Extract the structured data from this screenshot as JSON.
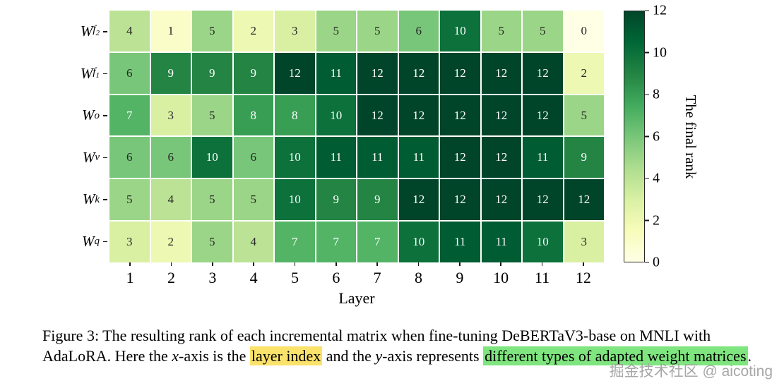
{
  "chart_data": {
    "type": "heatmap",
    "title": "",
    "xlabel": "Layer",
    "ylabel": "",
    "x_categories": [
      "1",
      "2",
      "3",
      "4",
      "5",
      "6",
      "7",
      "8",
      "9",
      "10",
      "11",
      "12"
    ],
    "y_categories": [
      "Wf2",
      "Wf1",
      "Wo",
      "Wv",
      "Wk",
      "Wq"
    ],
    "y_labels": [
      {
        "main": "W",
        "sub": "f2"
      },
      {
        "main": "W",
        "sub": "f1"
      },
      {
        "main": "W",
        "sub": "o"
      },
      {
        "main": "W",
        "sub": "v"
      },
      {
        "main": "W",
        "sub": "k"
      },
      {
        "main": "W",
        "sub": "q"
      }
    ],
    "values": [
      [
        4,
        1,
        5,
        2,
        3,
        5,
        5,
        6,
        10,
        5,
        5,
        0
      ],
      [
        6,
        9,
        9,
        9,
        12,
        11,
        12,
        12,
        12,
        12,
        12,
        2
      ],
      [
        7,
        3,
        5,
        8,
        8,
        10,
        12,
        12,
        12,
        12,
        12,
        5
      ],
      [
        6,
        6,
        10,
        6,
        10,
        11,
        11,
        11,
        12,
        12,
        11,
        9
      ],
      [
        5,
        4,
        5,
        5,
        10,
        9,
        9,
        12,
        12,
        12,
        12,
        12
      ],
      [
        3,
        2,
        5,
        4,
        7,
        7,
        7,
        10,
        11,
        11,
        10,
        3
      ]
    ],
    "vmin": 0,
    "vmax": 12,
    "grid": false,
    "colorbar": {
      "label": "The final rank",
      "ticks": [
        0,
        2,
        4,
        6,
        8,
        10,
        12
      ]
    },
    "colormap": "YlGn",
    "colormap_stops": [
      "#ffffe5",
      "#f7fcb9",
      "#d9f0a3",
      "#addd8e",
      "#78c679",
      "#41ab5d",
      "#238443",
      "#006837",
      "#004529"
    ]
  },
  "caption": {
    "highlight_colors": {
      "yellow": "#fbe26b",
      "green": "#7fe57f"
    },
    "segments": [
      {
        "text": "Figure 3: The resulting rank of each incremental matrix when fine-tuning DeBERTaV3-base on MNLI with AdaLoRA. Here the ",
        "style": "normal"
      },
      {
        "text": "x",
        "style": "italic"
      },
      {
        "text": "-axis is the ",
        "style": "normal"
      },
      {
        "text": "layer index",
        "style": "highlight-yellow"
      },
      {
        "text": " and the ",
        "style": "normal"
      },
      {
        "text": "y",
        "style": "italic"
      },
      {
        "text": "-axis represents ",
        "style": "normal"
      },
      {
        "text": "different types of adapted weight matrices",
        "style": "highlight-green"
      },
      {
        "text": ".",
        "style": "normal"
      }
    ]
  },
  "watermark": "掘金技术社区 @ aicoting"
}
